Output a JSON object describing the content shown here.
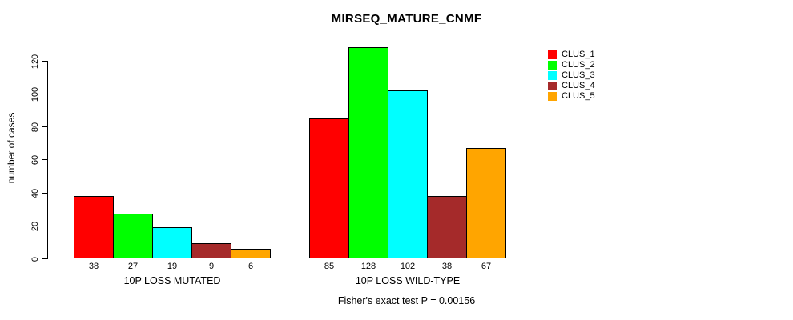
{
  "figure": {
    "title": "MIRSEQ_MATURE_CNMF",
    "y_axis_label": "number of cases",
    "footer": "Fisher's exact test P = 0.00156"
  },
  "chart_data": {
    "type": "bar",
    "title": "MIRSEQ_MATURE_CNMF",
    "xlabel": "",
    "ylabel": "number of cases",
    "ylim": [
      0,
      130
    ],
    "yticks": [
      0,
      20,
      40,
      60,
      80,
      100,
      120
    ],
    "grid": false,
    "legend_position": "top-right",
    "categories": [
      "10P LOSS MUTATED",
      "10P LOSS WILD-TYPE"
    ],
    "series": [
      {
        "name": "CLUS_1",
        "color": "#ff0000",
        "values": [
          38,
          85
        ]
      },
      {
        "name": "CLUS_2",
        "color": "#00ff00",
        "values": [
          27,
          128
        ]
      },
      {
        "name": "CLUS_3",
        "color": "#00ffff",
        "values": [
          19,
          102
        ]
      },
      {
        "name": "CLUS_4",
        "color": "#a52a2a",
        "values": [
          9,
          38
        ]
      },
      {
        "name": "CLUS_5",
        "color": "#ffa500",
        "values": [
          6,
          67
        ]
      }
    ],
    "bar_value_labels": [
      [
        "38",
        "27",
        "19",
        "9",
        "6"
      ],
      [
        "85",
        "128",
        "102",
        "38",
        "67"
      ]
    ],
    "bar_border_color": "#000000",
    "annotation": "Fisher's exact test P = 0.00156"
  }
}
